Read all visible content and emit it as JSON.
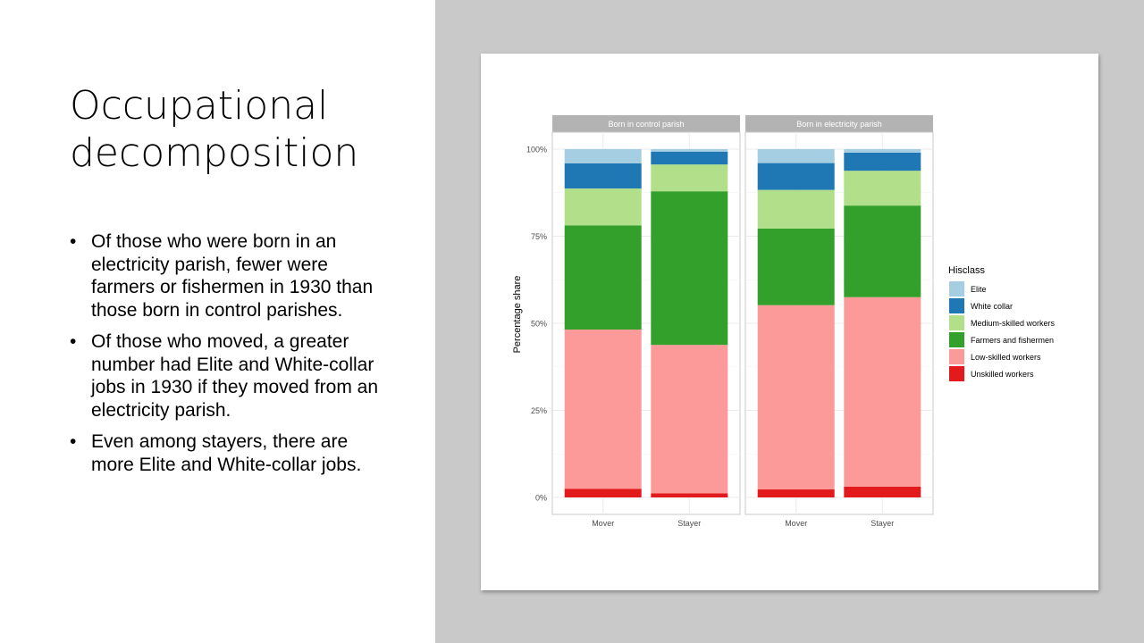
{
  "slide": {
    "title_lines": [
      "Occupational",
      "decomposition"
    ],
    "bullets": [
      "Of those who were born in an electricity parish, fewer were farmers or fishermen in 1930 than those born in control parishes.",
      "Of those who moved, a greater number had Elite and White-collar jobs in 1930 if they moved from an electricity parish.",
      "Even among stayers, there are more Elite and White-collar jobs."
    ]
  },
  "chart_data": {
    "type": "bar",
    "stacked": true,
    "ylabel": "Percentage share",
    "ylim": [
      0,
      1
    ],
    "yticks": [
      "0%",
      "25%",
      "50%",
      "75%",
      "100%"
    ],
    "legend_title": "Hisclass",
    "legend_position": "right",
    "grid": true,
    "categories": [
      "Mover",
      "Stayer"
    ],
    "panels": [
      {
        "title": "Born in control parish",
        "series": [
          {
            "name": "Unskilled workers",
            "values": [
              0.025,
              0.012
            ]
          },
          {
            "name": "Low-skilled workers",
            "values": [
              0.457,
              0.426
            ]
          },
          {
            "name": "Farmers and fishermen",
            "values": [
              0.299,
              0.441
            ]
          },
          {
            "name": "Medium-skilled workers",
            "values": [
              0.106,
              0.077
            ]
          },
          {
            "name": "White collar",
            "values": [
              0.072,
              0.037
            ]
          },
          {
            "name": "Elite",
            "values": [
              0.041,
              0.007
            ]
          }
        ]
      },
      {
        "title": "Born in electricity parish",
        "series": [
          {
            "name": "Unskilled workers",
            "values": [
              0.023,
              0.031
            ]
          },
          {
            "name": "Low-skilled workers",
            "values": [
              0.529,
              0.544
            ]
          },
          {
            "name": "Farmers and fishermen",
            "values": [
              0.22,
              0.263
            ]
          },
          {
            "name": "Medium-skilled workers",
            "values": [
              0.111,
              0.1
            ]
          },
          {
            "name": "White collar",
            "values": [
              0.077,
              0.052
            ]
          },
          {
            "name": "Elite",
            "values": [
              0.04,
              0.01
            ]
          }
        ]
      }
    ],
    "legend": [
      {
        "name": "Elite",
        "color": "#a6cee3"
      },
      {
        "name": "White collar",
        "color": "#1f78b4"
      },
      {
        "name": "Medium-skilled workers",
        "color": "#b2df8a"
      },
      {
        "name": "Farmers and fishermen",
        "color": "#33a02c"
      },
      {
        "name": "Low-skilled workers",
        "color": "#fb9a99"
      },
      {
        "name": "Unskilled workers",
        "color": "#e31a1c"
      }
    ],
    "colors": {
      "Elite": "#a6cee3",
      "White collar": "#1f78b4",
      "Medium-skilled workers": "#b2df8a",
      "Farmers and fishermen": "#33a02c",
      "Low-skilled workers": "#fb9a99",
      "Unskilled workers": "#e31a1c"
    }
  }
}
